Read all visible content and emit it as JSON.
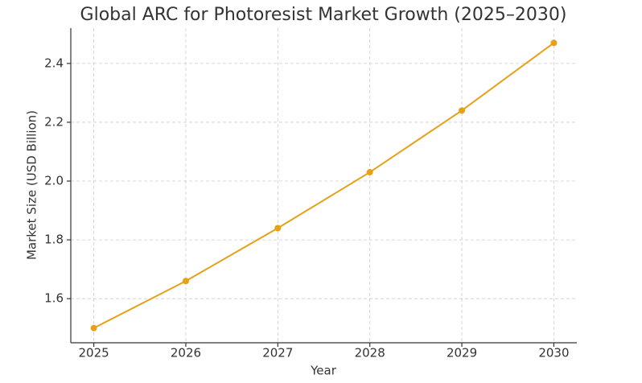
{
  "chart_data": {
    "type": "line",
    "title": "Global ARC for Photoresist Market Growth (2025–2030)",
    "x_label": "Year",
    "y_label": "Market Size (USD Billion)",
    "x": [
      2025,
      2026,
      2027,
      2028,
      2029,
      2030
    ],
    "series": [
      {
        "name": "Market Size",
        "color": "#e6a117",
        "values": [
          1.5,
          1.66,
          1.84,
          2.03,
          2.24,
          2.47
        ]
      }
    ],
    "xlim": [
      2024.75,
      2030.25
    ],
    "xticks": [
      2025,
      2026,
      2027,
      2028,
      2029,
      2030
    ],
    "ylim": [
      1.45,
      2.52
    ],
    "yticks": [
      1.6,
      1.8,
      2.0,
      2.2,
      2.4
    ],
    "grid": true
  }
}
